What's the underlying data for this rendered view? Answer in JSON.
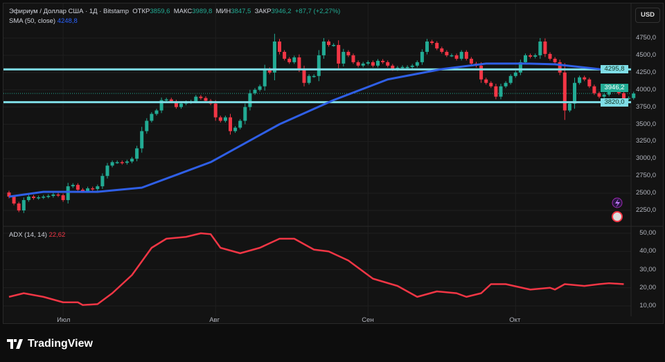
{
  "header": {
    "symbol": "Эфириум / Доллар США · 1Д · Bitstamp",
    "open_label": "ОТКР",
    "open": "3859,6",
    "high_label": "МАКС",
    "high": "3989,8",
    "low_label": "МИН",
    "low": "3847,5",
    "close_label": "ЗАКР",
    "close": "3946,2",
    "change": "+87,7 (+2,27%)"
  },
  "sma": {
    "label": "SMA (50, close)",
    "value": "4248,8"
  },
  "adx": {
    "label": "ADX (14, 14)",
    "value": "22,62"
  },
  "currency_button": "USD",
  "price_ticks": [
    "4750,0",
    "4500,0",
    "4250,0",
    "4000,0",
    "3750,0",
    "3500,0",
    "3250,0",
    "3000,0",
    "2750,0",
    "2500,0",
    "2250,0"
  ],
  "price_tick_values": [
    4750,
    4500,
    4250,
    4000,
    3750,
    3500,
    3250,
    3000,
    2750,
    2500,
    2250
  ],
  "adx_ticks": [
    "50,00",
    "40,00",
    "30,00",
    "20,00",
    "10,00"
  ],
  "adx_tick_values": [
    50,
    40,
    30,
    20,
    10
  ],
  "levels": [
    {
      "label": "4295,8",
      "value": 4295.8
    },
    {
      "label": "3820,0",
      "value": 3820.0
    }
  ],
  "last_price": {
    "label": "3946,2",
    "value": 3946.2
  },
  "dates": [
    {
      "label": "Июл",
      "index": 11
    },
    {
      "label": "Авг",
      "index": 42
    },
    {
      "label": "Сен",
      "index": 73
    },
    {
      "label": "Окт",
      "index": 103
    }
  ],
  "brand": "TradingView",
  "colors": {
    "up": "#22ab94",
    "down": "#f23645",
    "sma": "#2f5fe6",
    "level": "#7fdde6",
    "adx": "#f23645"
  },
  "chart_data": {
    "type": "candlestick",
    "closes": [
      2450,
      2350,
      2250,
      2400,
      2450,
      2430,
      2440,
      2450,
      2460,
      2480,
      2470,
      2400,
      2600,
      2620,
      2550,
      2530,
      2570,
      2560,
      2600,
      2750,
      2900,
      2950,
      2950,
      2940,
      2960,
      3000,
      3150,
      3400,
      3550,
      3650,
      3700,
      3850,
      3860,
      3830,
      3750,
      3800,
      3820,
      3830,
      3900,
      3880,
      3840,
      3800,
      3600,
      3550,
      3600,
      3400,
      3450,
      3550,
      3750,
      3950,
      4000,
      4050,
      4300,
      4250,
      4700,
      4550,
      4450,
      4400,
      4470,
      4300,
      4100,
      4200,
      4200,
      4500,
      4700,
      4650,
      4650,
      4380,
      4550,
      4500,
      4400,
      4350,
      4380,
      4400,
      4350,
      4420,
      4400,
      4350,
      4300,
      4320,
      4330,
      4330,
      4350,
      4400,
      4550,
      4700,
      4680,
      4600,
      4550,
      4500,
      4500,
      4450,
      4550,
      4450,
      4380,
      4350,
      4150,
      4100,
      4050,
      3900,
      4050,
      4100,
      4200,
      4250,
      4400,
      4500,
      4480,
      4500,
      4700,
      4520,
      4450,
      4400,
      4250,
      3700,
      3800,
      4100,
      4180,
      4150,
      4050,
      3950,
      3900,
      3930,
      4000,
      3990,
      3950,
      3870,
      3880,
      3946
    ],
    "sma": [
      [
        0,
        2450
      ],
      [
        7,
        2520
      ],
      [
        18,
        2520
      ],
      [
        27,
        2580
      ],
      [
        41,
        2950
      ],
      [
        55,
        3500
      ],
      [
        66,
        3850
      ],
      [
        77,
        4150
      ],
      [
        88,
        4300
      ],
      [
        97,
        4380
      ],
      [
        105,
        4380
      ],
      [
        111,
        4370
      ],
      [
        120,
        4300
      ],
      [
        125,
        4270
      ]
    ],
    "adx": [
      [
        0,
        15
      ],
      [
        3,
        17
      ],
      [
        7,
        15
      ],
      [
        11,
        12
      ],
      [
        14,
        12
      ],
      [
        15,
        10.5
      ],
      [
        18,
        11
      ],
      [
        21,
        17
      ],
      [
        25,
        27
      ],
      [
        29,
        42
      ],
      [
        32,
        47
      ],
      [
        36,
        48
      ],
      [
        39,
        50
      ],
      [
        41,
        49.5
      ],
      [
        43,
        42
      ],
      [
        47,
        39
      ],
      [
        51,
        42
      ],
      [
        55,
        47
      ],
      [
        58,
        47
      ],
      [
        62,
        41
      ],
      [
        65,
        40
      ],
      [
        69,
        35
      ],
      [
        74,
        25
      ],
      [
        79,
        21
      ],
      [
        83,
        15
      ],
      [
        87,
        18
      ],
      [
        91,
        17
      ],
      [
        93,
        15
      ],
      [
        96,
        17
      ],
      [
        98,
        22
      ],
      [
        101,
        22
      ],
      [
        106,
        19
      ],
      [
        110,
        20
      ],
      [
        111,
        19
      ],
      [
        113,
        22
      ],
      [
        117,
        21
      ],
      [
        120,
        22
      ],
      [
        122,
        22.5
      ],
      [
        125,
        22
      ]
    ],
    "ylim": [
      2100,
      4900
    ],
    "adx_ylim": [
      5,
      55
    ]
  }
}
